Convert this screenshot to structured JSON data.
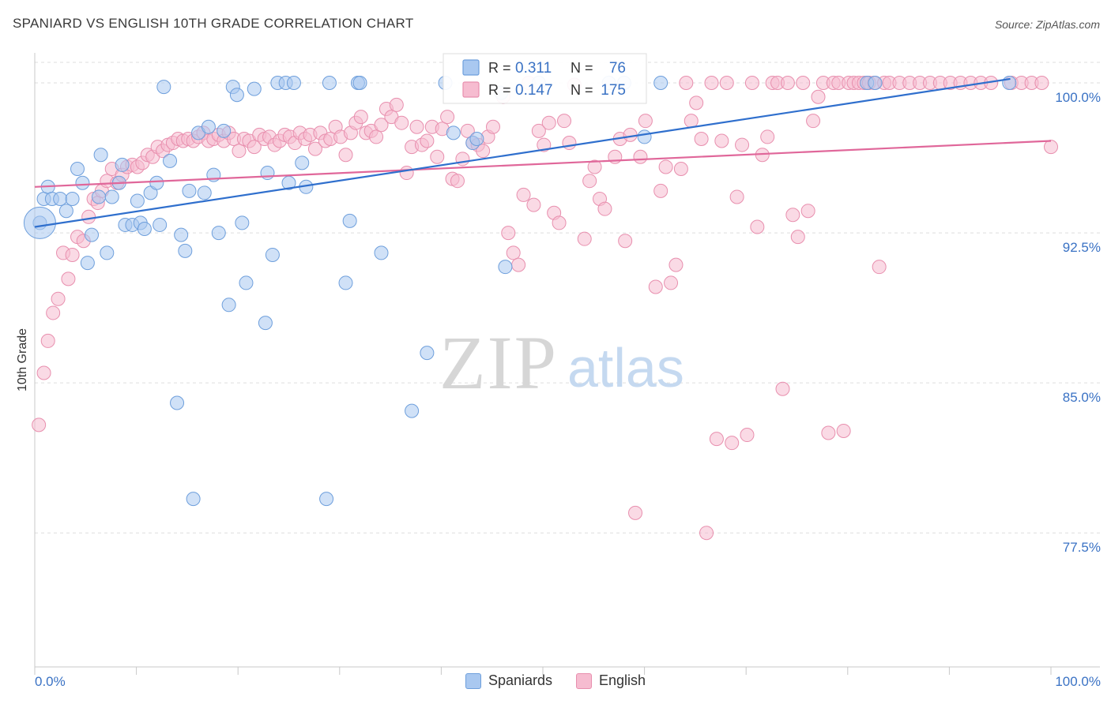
{
  "title": "SPANIARD VS ENGLISH 10TH GRADE CORRELATION CHART",
  "source": "Source: ZipAtlas.com",
  "watermark": {
    "zip": "ZIP",
    "atlas": "atlas"
  },
  "legend": {
    "rows": [
      {
        "r_label": "R =",
        "r_value": "0.311",
        "n_label": "N =",
        "n_value": "76"
      },
      {
        "r_label": "R =",
        "r_value": "0.147",
        "n_label": "N =",
        "n_value": "175"
      }
    ]
  },
  "colors": {
    "blue_fill": "#a9c8f0",
    "blue_stroke": "#6e9fdc",
    "blue_line": "#2f6fcd",
    "pink_fill": "#f6bcd0",
    "pink_stroke": "#e88fae",
    "pink_line": "#e0679a",
    "value_text": "#3a72c4",
    "grid": "#dddddd"
  },
  "chart_data": {
    "type": "scatter",
    "title": "SPANIARD VS ENGLISH 10TH GRADE CORRELATION CHART",
    "xlabel": "",
    "ylabel": "10th Grade",
    "xlim": [
      0,
      100
    ],
    "ylim": [
      70.8,
      101.5
    ],
    "x_tick_labels": [
      "0.0%",
      "100.0%"
    ],
    "y_ticks": [
      77.5,
      85.0,
      92.5,
      100.0
    ],
    "y_tick_labels": [
      "77.5%",
      "85.0%",
      "92.5%",
      "100.0%"
    ],
    "grid": "horizontal-dashed",
    "legend_position": "top-center",
    "series": [
      {
        "name": "Spaniards",
        "r": 0.311,
        "n": 76,
        "trend": [
          [
            0,
            92.8
          ],
          [
            96,
            100.2
          ]
        ],
        "points": [
          [
            0.5,
            93.0
          ],
          [
            0.9,
            94.2
          ],
          [
            1.3,
            94.8
          ],
          [
            1.7,
            94.2
          ],
          [
            2.5,
            94.2
          ],
          [
            3.1,
            93.6
          ],
          [
            3.7,
            94.2
          ],
          [
            4.2,
            95.7
          ],
          [
            4.7,
            95.0
          ],
          [
            5.2,
            91.0
          ],
          [
            5.6,
            92.4
          ],
          [
            6.3,
            94.3
          ],
          [
            6.5,
            96.4
          ],
          [
            7.1,
            91.5
          ],
          [
            7.6,
            94.3
          ],
          [
            8.3,
            95.0
          ],
          [
            8.6,
            95.9
          ],
          [
            8.9,
            92.9
          ],
          [
            9.6,
            92.9
          ],
          [
            10.1,
            94.1
          ],
          [
            10.4,
            93.0
          ],
          [
            10.8,
            92.7
          ],
          [
            11.4,
            94.5
          ],
          [
            12.0,
            95.0
          ],
          [
            12.3,
            92.9
          ],
          [
            12.7,
            99.8
          ],
          [
            13.3,
            96.1
          ],
          [
            14.0,
            84.0
          ],
          [
            14.4,
            92.4
          ],
          [
            14.8,
            91.6
          ],
          [
            15.2,
            94.6
          ],
          [
            15.6,
            79.2
          ],
          [
            16.1,
            97.5
          ],
          [
            16.7,
            94.5
          ],
          [
            17.1,
            97.8
          ],
          [
            17.6,
            95.4
          ],
          [
            18.1,
            92.5
          ],
          [
            18.6,
            97.6
          ],
          [
            19.1,
            88.9
          ],
          [
            19.5,
            99.8
          ],
          [
            19.9,
            99.4
          ],
          [
            20.4,
            93.0
          ],
          [
            20.8,
            90.0
          ],
          [
            21.6,
            99.7
          ],
          [
            22.7,
            88.0
          ],
          [
            22.9,
            95.5
          ],
          [
            23.4,
            91.4
          ],
          [
            23.9,
            100.0
          ],
          [
            24.7,
            100.0
          ],
          [
            25.0,
            95.0
          ],
          [
            25.5,
            100.0
          ],
          [
            26.3,
            96.0
          ],
          [
            26.7,
            94.8
          ],
          [
            28.7,
            79.2
          ],
          [
            29.0,
            100.0
          ],
          [
            30.6,
            90.0
          ],
          [
            31.0,
            93.1
          ],
          [
            31.8,
            100.0
          ],
          [
            32.0,
            100.0
          ],
          [
            34.1,
            91.5
          ],
          [
            37.1,
            83.6
          ],
          [
            38.6,
            86.5
          ],
          [
            40.4,
            100.0
          ],
          [
            41.2,
            97.5
          ],
          [
            43.1,
            97.0
          ],
          [
            43.5,
            97.2
          ],
          [
            45.9,
            99.5
          ],
          [
            46.3,
            90.8
          ],
          [
            49.6,
            100.0
          ],
          [
            56.5,
            100.0
          ],
          [
            58.0,
            100.0
          ],
          [
            60.0,
            97.3
          ],
          [
            61.6,
            100.0
          ],
          [
            81.9,
            100.0
          ],
          [
            82.7,
            100.0
          ],
          [
            95.9,
            100.0
          ]
        ],
        "big_points": [
          [
            0.5,
            93.0
          ]
        ]
      },
      {
        "name": "English",
        "r": 0.147,
        "n": 175,
        "trend": [
          [
            0,
            94.8
          ],
          [
            100,
            97.1
          ]
        ],
        "points": [
          [
            0.4,
            82.9
          ],
          [
            0.9,
            85.5
          ],
          [
            1.3,
            87.1
          ],
          [
            1.8,
            88.5
          ],
          [
            2.3,
            89.2
          ],
          [
            2.8,
            91.5
          ],
          [
            3.3,
            90.2
          ],
          [
            3.7,
            91.4
          ],
          [
            4.2,
            92.3
          ],
          [
            4.8,
            92.1
          ],
          [
            5.3,
            93.3
          ],
          [
            5.8,
            94.2
          ],
          [
            6.2,
            94.0
          ],
          [
            6.6,
            94.6
          ],
          [
            7.1,
            95.1
          ],
          [
            7.6,
            95.7
          ],
          [
            8.1,
            95.0
          ],
          [
            8.6,
            95.4
          ],
          [
            9.1,
            95.8
          ],
          [
            9.6,
            95.9
          ],
          [
            10.1,
            95.8
          ],
          [
            10.6,
            96.0
          ],
          [
            11.1,
            96.4
          ],
          [
            11.6,
            96.3
          ],
          [
            12.1,
            96.8
          ],
          [
            12.6,
            96.6
          ],
          [
            13.1,
            96.9
          ],
          [
            13.6,
            97.0
          ],
          [
            14.1,
            97.2
          ],
          [
            14.6,
            97.1
          ],
          [
            15.1,
            97.2
          ],
          [
            15.6,
            97.1
          ],
          [
            16.1,
            97.3
          ],
          [
            16.6,
            97.5
          ],
          [
            17.1,
            97.1
          ],
          [
            17.6,
            97.2
          ],
          [
            18.1,
            97.4
          ],
          [
            18.6,
            97.1
          ],
          [
            19.1,
            97.5
          ],
          [
            19.6,
            97.2
          ],
          [
            20.1,
            96.6
          ],
          [
            20.6,
            97.2
          ],
          [
            21.1,
            97.1
          ],
          [
            21.6,
            96.8
          ],
          [
            22.1,
            97.4
          ],
          [
            22.6,
            97.2
          ],
          [
            23.1,
            97.3
          ],
          [
            23.6,
            96.9
          ],
          [
            24.1,
            97.1
          ],
          [
            24.6,
            97.4
          ],
          [
            25.1,
            97.3
          ],
          [
            25.6,
            97.0
          ],
          [
            26.1,
            97.5
          ],
          [
            26.6,
            97.2
          ],
          [
            27.1,
            97.4
          ],
          [
            27.6,
            96.7
          ],
          [
            28.1,
            97.5
          ],
          [
            28.6,
            97.1
          ],
          [
            29.1,
            97.2
          ],
          [
            29.6,
            97.8
          ],
          [
            30.1,
            97.3
          ],
          [
            30.6,
            96.4
          ],
          [
            31.1,
            97.5
          ],
          [
            31.6,
            98.0
          ],
          [
            32.1,
            98.3
          ],
          [
            32.6,
            97.5
          ],
          [
            33.1,
            97.6
          ],
          [
            33.6,
            97.3
          ],
          [
            34.1,
            97.9
          ],
          [
            34.6,
            98.7
          ],
          [
            35.1,
            98.3
          ],
          [
            35.6,
            98.9
          ],
          [
            36.1,
            98.0
          ],
          [
            36.6,
            95.5
          ],
          [
            37.1,
            96.8
          ],
          [
            37.6,
            97.8
          ],
          [
            38.1,
            96.9
          ],
          [
            38.6,
            97.1
          ],
          [
            39.1,
            97.8
          ],
          [
            39.6,
            96.3
          ],
          [
            40.1,
            97.7
          ],
          [
            40.6,
            98.3
          ],
          [
            41.1,
            95.2
          ],
          [
            41.6,
            95.1
          ],
          [
            42.1,
            96.2
          ],
          [
            42.6,
            97.6
          ],
          [
            43.1,
            97.0
          ],
          [
            43.6,
            96.9
          ],
          [
            44.1,
            96.6
          ],
          [
            44.6,
            97.3
          ],
          [
            45.1,
            97.8
          ],
          [
            46.1,
            99.3
          ],
          [
            46.6,
            92.5
          ],
          [
            47.1,
            91.5
          ],
          [
            47.6,
            90.9
          ],
          [
            48.1,
            94.4
          ],
          [
            48.6,
            100.0
          ],
          [
            49.1,
            93.9
          ],
          [
            49.6,
            97.6
          ],
          [
            50.1,
            96.9
          ],
          [
            50.6,
            98.0
          ],
          [
            51.1,
            93.5
          ],
          [
            51.6,
            93.0
          ],
          [
            52.1,
            98.1
          ],
          [
            52.6,
            97.0
          ],
          [
            53.1,
            99.9
          ],
          [
            54.1,
            92.2
          ],
          [
            54.6,
            95.1
          ],
          [
            55.1,
            95.8
          ],
          [
            55.6,
            94.2
          ],
          [
            56.1,
            93.7
          ],
          [
            57.1,
            96.3
          ],
          [
            57.6,
            97.2
          ],
          [
            58.1,
            92.1
          ],
          [
            58.6,
            97.4
          ],
          [
            59.1,
            78.5
          ],
          [
            59.6,
            96.3
          ],
          [
            60.1,
            98.1
          ],
          [
            61.1,
            89.8
          ],
          [
            61.6,
            94.6
          ],
          [
            62.1,
            95.8
          ],
          [
            62.6,
            90.0
          ],
          [
            63.1,
            90.9
          ],
          [
            63.6,
            95.7
          ],
          [
            64.1,
            100.0
          ],
          [
            64.6,
            98.1
          ],
          [
            65.1,
            99.0
          ],
          [
            65.6,
            97.2
          ],
          [
            66.1,
            77.5
          ],
          [
            66.6,
            100.0
          ],
          [
            67.1,
            82.2
          ],
          [
            67.6,
            97.1
          ],
          [
            68.1,
            100.0
          ],
          [
            68.6,
            82.0
          ],
          [
            69.1,
            94.3
          ],
          [
            69.6,
            96.9
          ],
          [
            70.1,
            82.4
          ],
          [
            70.6,
            100.0
          ],
          [
            71.1,
            92.8
          ],
          [
            71.6,
            96.4
          ],
          [
            72.1,
            97.3
          ],
          [
            72.6,
            100.0
          ],
          [
            73.1,
            100.0
          ],
          [
            73.6,
            84.7
          ],
          [
            74.1,
            100.0
          ],
          [
            74.6,
            93.4
          ],
          [
            75.1,
            92.3
          ],
          [
            75.6,
            100.0
          ],
          [
            76.1,
            93.6
          ],
          [
            76.6,
            98.1
          ],
          [
            77.1,
            99.3
          ],
          [
            77.6,
            100.0
          ],
          [
            78.1,
            82.5
          ],
          [
            78.6,
            100.0
          ],
          [
            79.1,
            100.0
          ],
          [
            79.6,
            82.6
          ],
          [
            80.1,
            100.0
          ],
          [
            80.6,
            100.0
          ],
          [
            81.1,
            100.0
          ],
          [
            81.6,
            100.0
          ],
          [
            82.1,
            100.0
          ],
          [
            82.6,
            100.0
          ],
          [
            83.1,
            90.8
          ],
          [
            83.6,
            100.0
          ],
          [
            84.1,
            100.0
          ],
          [
            85.1,
            100.0
          ],
          [
            86.1,
            100.0
          ],
          [
            87.1,
            100.0
          ],
          [
            88.1,
            100.0
          ],
          [
            89.1,
            100.0
          ],
          [
            90.1,
            100.0
          ],
          [
            91.1,
            100.0
          ],
          [
            92.1,
            100.0
          ],
          [
            93.1,
            100.0
          ],
          [
            94.1,
            100.0
          ],
          [
            96.1,
            100.0
          ],
          [
            97.1,
            100.0
          ],
          [
            98.1,
            100.0
          ],
          [
            99.1,
            100.0
          ],
          [
            100.0,
            96.8
          ]
        ],
        "big_points": []
      }
    ]
  }
}
